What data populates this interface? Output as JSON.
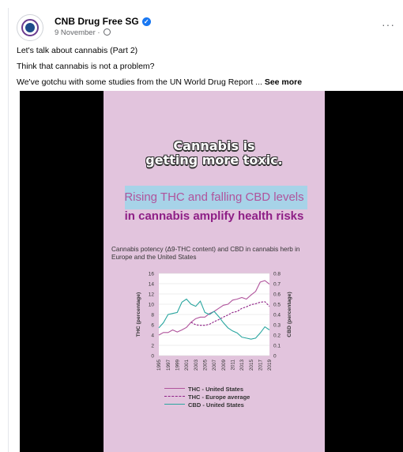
{
  "post": {
    "page_name": "CNB Drug Free SG",
    "verified_mark": "✓",
    "date": "9 November",
    "separator": "·",
    "menu_glyph": "···",
    "lines": [
      "Let's talk about cannabis (Part 2)",
      "Think that cannabis is not a problem?",
      "We've gotchu with some studies from the UN World Drug Report ..."
    ],
    "see_more": "See more"
  },
  "poster": {
    "headline_line1": "Cannabis is",
    "headline_line2": "getting more toxic.",
    "subhead_line1": "Rising THC and falling CBD levels",
    "subhead_line2": "in cannabis amplify health risks"
  },
  "colors": {
    "poster_bg": "#e2c4dd",
    "thc_us": "#b0549c",
    "thc_eu": "#8e1f86",
    "cbd_us": "#2aa6a0",
    "band": "#a7d3e8",
    "facebook_blue": "#1877f2"
  },
  "chart_data": {
    "type": "line",
    "title": "Cannabis potency (Δ9-THC content) and CBD in cannabis herb in Europe and the United States",
    "x": [
      1995,
      1996,
      1997,
      1998,
      1999,
      2000,
      2001,
      2002,
      2003,
      2004,
      2005,
      2006,
      2007,
      2008,
      2009,
      2010,
      2011,
      2012,
      2013,
      2014,
      2015,
      2016,
      2017,
      2018,
      2019
    ],
    "x_tick_labels": [
      "1995",
      "1997",
      "1999",
      "2001",
      "2003",
      "2005",
      "2007",
      "2009",
      "2011",
      "2013",
      "2015",
      "2017",
      "2019"
    ],
    "y_left_label": "THC (percentage)",
    "y_right_label": "CBD (percentage)",
    "y_left_ticks": [
      "0",
      "2",
      "4",
      "6",
      "8",
      "10",
      "12",
      "14",
      "16"
    ],
    "y_right_ticks": [
      "0",
      "0.1",
      "0.2",
      "0.3",
      "0.4",
      "0.5",
      "0.6",
      "0.7",
      "0.8"
    ],
    "ylim_left": [
      0,
      16
    ],
    "ylim_right": [
      0,
      0.8
    ],
    "grid": "horizontal",
    "legend_position": "bottom",
    "series": [
      {
        "name": "THC - United States",
        "axis": "left",
        "style": "solid",
        "values": [
          4.0,
          4.5,
          4.5,
          5.0,
          4.6,
          5.0,
          5.5,
          6.5,
          7.2,
          7.5,
          7.5,
          8.2,
          8.6,
          9.2,
          9.8,
          10.0,
          10.8,
          11.0,
          11.3,
          11.0,
          11.8,
          12.5,
          14.3,
          14.6,
          13.9
        ]
      },
      {
        "name": "THC - Europe average",
        "axis": "left",
        "style": "dashed",
        "values": [
          null,
          null,
          null,
          null,
          null,
          null,
          null,
          6.5,
          6.0,
          5.9,
          5.9,
          6.1,
          6.6,
          7.0,
          7.5,
          7.9,
          8.4,
          8.6,
          9.2,
          9.5,
          9.9,
          10.1,
          10.4,
          10.5,
          9.6
        ]
      },
      {
        "name": "CBD - United States",
        "axis": "right",
        "style": "solid",
        "values": [
          0.27,
          0.32,
          0.4,
          0.41,
          0.42,
          0.52,
          0.55,
          0.5,
          0.48,
          0.53,
          0.42,
          0.4,
          0.43,
          0.38,
          0.32,
          0.27,
          0.24,
          0.22,
          0.18,
          0.17,
          0.16,
          0.17,
          0.22,
          0.28,
          0.25
        ]
      }
    ]
  }
}
